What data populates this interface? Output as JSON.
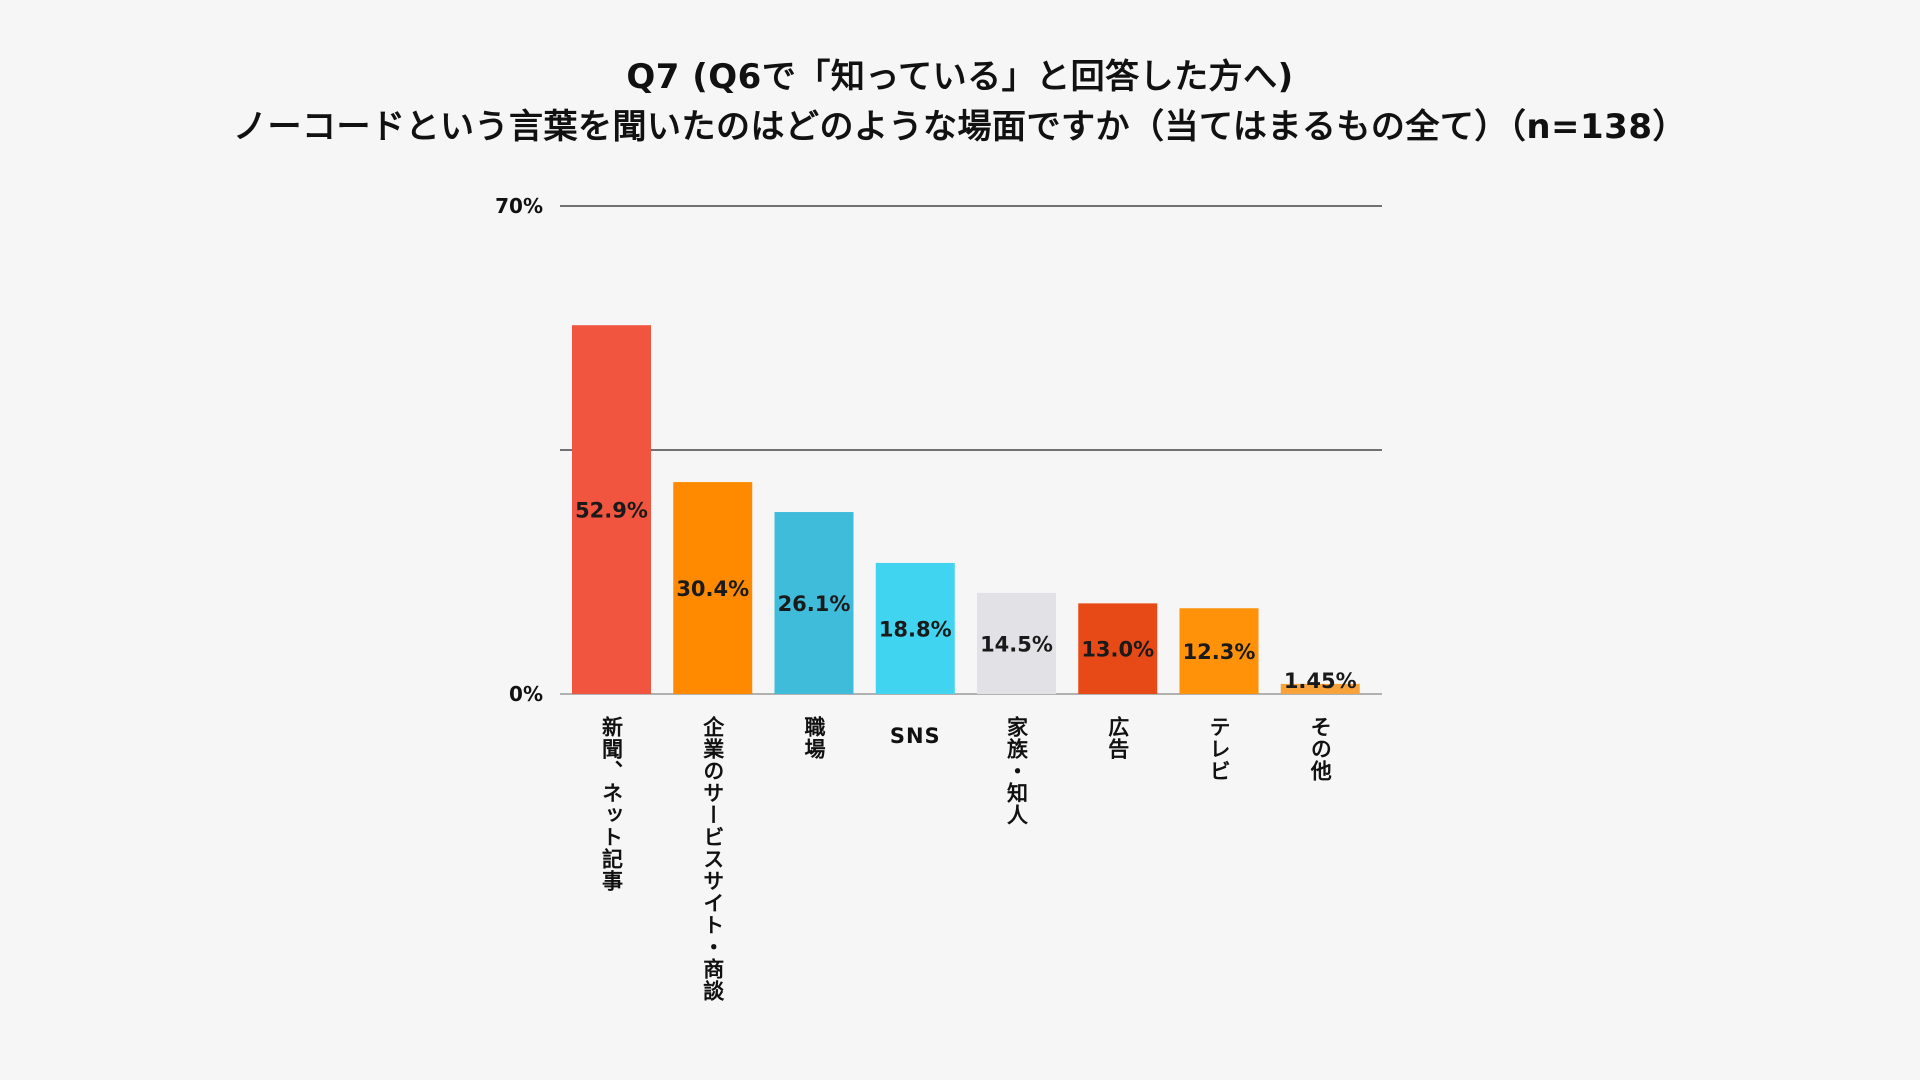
{
  "chart_data": {
    "type": "bar",
    "title": "Q7 (Q6で「知っている」と回答した方へ)",
    "subtitle": "ノーコードという言葉を聞いたのはどのような場面ですか（当てはまるもの全て）（n=138）",
    "categories": [
      "新聞、ネット記事",
      "企業のサービスサイト・商談",
      "職場",
      "SNS",
      "家族・知人",
      "広告",
      "テレビ",
      "その他"
    ],
    "values": [
      52.9,
      30.4,
      26.1,
      18.8,
      14.5,
      13.0,
      12.3,
      1.45
    ],
    "data_labels": [
      "52.9%",
      "30.4%",
      "26.1%",
      "18.8%",
      "14.5%",
      "13.0%",
      "12.3%",
      "1.45%"
    ],
    "bar_colors": [
      "#f2553f",
      "#ff8a00",
      "#3fbcd9",
      "#40d4f0",
      "#e2e2e6",
      "#e84a17",
      "#ff9208",
      "#f7a23a"
    ],
    "ytick_labels": [
      "70%",
      "0%"
    ],
    "ylim": [
      0,
      70
    ],
    "gridlines_at": [
      0,
      35,
      70
    ],
    "grid": true,
    "xlabel": "",
    "ylabel": ""
  }
}
